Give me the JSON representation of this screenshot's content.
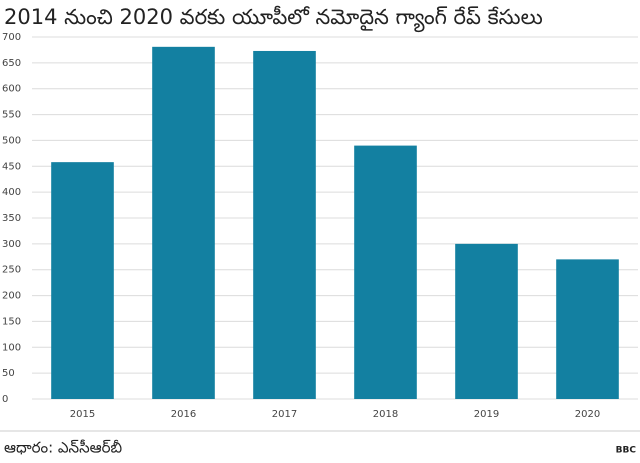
{
  "chart_data": {
    "type": "bar",
    "title": "2014 నుంచి 2020 వరకు యూపీలో నమోదైన గ్యాంగ్ రేప్ కేసులు",
    "categories": [
      "2015",
      "2016",
      "2017",
      "2018",
      "2019",
      "2020"
    ],
    "values": [
      458,
      681,
      673,
      490,
      300,
      270
    ],
    "color": "#1380a1",
    "ylim": [
      0,
      700
    ],
    "yticks": [
      0,
      50,
      100,
      150,
      200,
      250,
      300,
      350,
      400,
      450,
      500,
      550,
      600,
      650,
      700
    ],
    "grid": true,
    "source": "ఆధారం: ఎన్‌సీఆర్‌బీ",
    "logo": "BBC"
  }
}
